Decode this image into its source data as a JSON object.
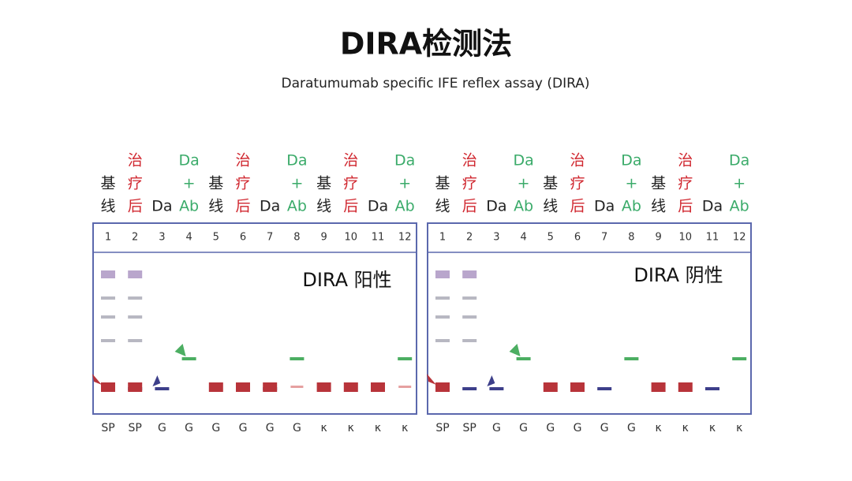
{
  "header": {
    "title": "DIRA检测法",
    "subtitle": "Daratumumab specific IFE reflex assay (DIRA)"
  },
  "panels": [
    {
      "label": "DIRA 阳性",
      "lanes": [
        {
          "header": [
            "基",
            "线"
          ],
          "tone": "#222222",
          "number": "1",
          "bottom": "SP"
        },
        {
          "header": [
            "治",
            "疗",
            "后"
          ],
          "tone": "#d0272f",
          "number": "2",
          "bottom": "SP"
        },
        {
          "header": [
            "Da"
          ],
          "tone": "#222222",
          "number": "3",
          "bottom": "G"
        },
        {
          "header": [
            "Da",
            "+",
            "Ab"
          ],
          "tone": "#3bab6a",
          "number": "4",
          "bottom": "G"
        },
        {
          "header": [
            "基",
            "线"
          ],
          "tone": "#222222",
          "number": "5",
          "bottom": "G"
        },
        {
          "header": [
            "治",
            "疗",
            "后"
          ],
          "tone": "#d0272f",
          "number": "6",
          "bottom": "G"
        },
        {
          "header": [
            "Da"
          ],
          "tone": "#222222",
          "number": "7",
          "bottom": "G"
        },
        {
          "header": [
            "Da",
            "+",
            "Ab"
          ],
          "tone": "#3bab6a",
          "number": "8",
          "bottom": "G"
        },
        {
          "header": [
            "基",
            "线"
          ],
          "tone": "#222222",
          "number": "9",
          "bottom": "κ"
        },
        {
          "header": [
            "治",
            "疗",
            "后"
          ],
          "tone": "#d0272f",
          "number": "10",
          "bottom": "κ"
        },
        {
          "header": [
            "Da"
          ],
          "tone": "#222222",
          "number": "11",
          "bottom": "κ"
        },
        {
          "header": [
            "Da",
            "+",
            "Ab"
          ],
          "tone": "#3bab6a",
          "number": "12",
          "bottom": "κ"
        }
      ]
    },
    {
      "label": "DIRA 阴性",
      "lanes": [
        {
          "header": [
            "基",
            "线"
          ],
          "tone": "#222222",
          "number": "1",
          "bottom": "SP"
        },
        {
          "header": [
            "治",
            "疗",
            "后"
          ],
          "tone": "#d0272f",
          "number": "2",
          "bottom": "SP"
        },
        {
          "header": [
            "Da"
          ],
          "tone": "#222222",
          "number": "3",
          "bottom": "G"
        },
        {
          "header": [
            "Da",
            "+",
            "Ab"
          ],
          "tone": "#3bab6a",
          "number": "4",
          "bottom": "G"
        },
        {
          "header": [
            "基",
            "线"
          ],
          "tone": "#222222",
          "number": "5",
          "bottom": "G"
        },
        {
          "header": [
            "治",
            "疗",
            "后"
          ],
          "tone": "#d0272f",
          "number": "6",
          "bottom": "G"
        },
        {
          "header": [
            "Da"
          ],
          "tone": "#222222",
          "number": "7",
          "bottom": "G"
        },
        {
          "header": [
            "Da",
            "+",
            "Ab"
          ],
          "tone": "#3bab6a",
          "number": "8",
          "bottom": "G"
        },
        {
          "header": [
            "基",
            "线"
          ],
          "tone": "#222222",
          "number": "9",
          "bottom": "κ"
        },
        {
          "header": [
            "治",
            "疗",
            "后"
          ],
          "tone": "#d0272f",
          "number": "10",
          "bottom": "κ"
        },
        {
          "header": [
            "Da"
          ],
          "tone": "#222222",
          "number": "11",
          "bottom": "κ"
        },
        {
          "header": [
            "Da",
            "+",
            "Ab"
          ],
          "tone": "#3bab6a",
          "number": "12",
          "bottom": "κ"
        }
      ]
    }
  ]
}
